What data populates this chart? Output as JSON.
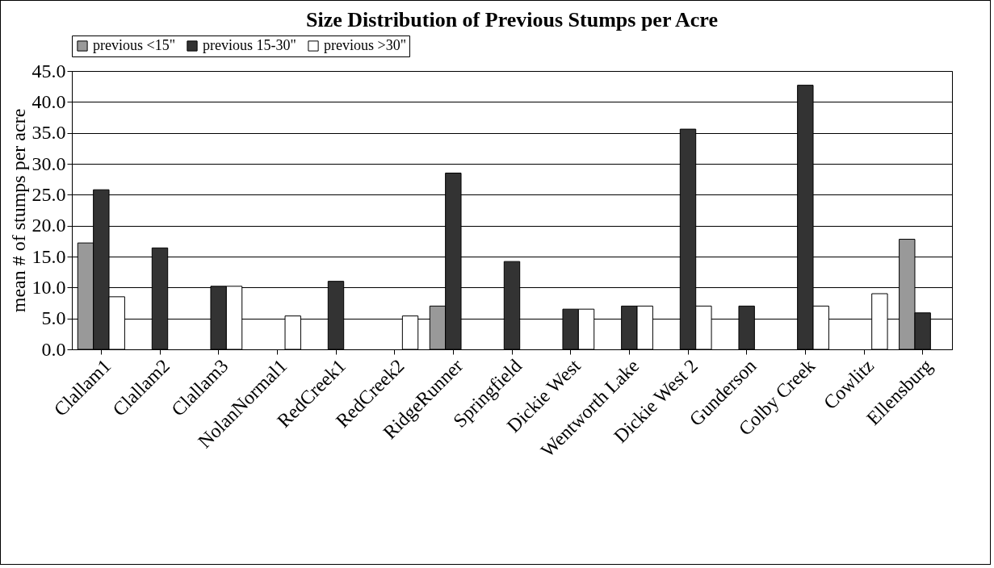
{
  "chart_data": {
    "type": "bar",
    "title": "Size Distribution of Previous Stumps per Acre",
    "ylabel": "mean # of stumps per acre",
    "categories": [
      "Clallam1",
      "Clallam2",
      "Clallam3",
      "NolanNormal1",
      "RedCreek1",
      "RedCreek2",
      "RidgeRunner",
      "Springfield",
      "Dickie West",
      "Wentworth Lake",
      "Dickie West 2",
      "Gunderson",
      "Colby Creek",
      "Cowlitz",
      "Ellensburg"
    ],
    "series": [
      {
        "name": "previous <15\"",
        "color": "#999999",
        "values": [
          17.2,
          null,
          null,
          null,
          null,
          null,
          7.0,
          null,
          null,
          null,
          null,
          null,
          null,
          null,
          17.8
        ]
      },
      {
        "name": "previous 15-30\"",
        "color": "#333333",
        "values": [
          25.8,
          16.4,
          10.2,
          null,
          11.0,
          null,
          28.5,
          14.2,
          6.5,
          7.0,
          35.6,
          7.0,
          42.7,
          null,
          5.9
        ]
      },
      {
        "name": "previous >30\"",
        "color": "#ffffff",
        "values": [
          8.5,
          null,
          10.2,
          5.4,
          null,
          5.4,
          null,
          null,
          6.5,
          7.0,
          7.0,
          null,
          7.0,
          9.0,
          null
        ]
      }
    ],
    "ylim": [
      0,
      45
    ],
    "yticks": [
      {
        "value": 0,
        "label": "0.0"
      },
      {
        "value": 5,
        "label": "5.0"
      },
      {
        "value": 10,
        "label": "10.0"
      },
      {
        "value": 15,
        "label": "15.0"
      },
      {
        "value": 20,
        "label": "20.0"
      },
      {
        "value": 25,
        "label": "25.0"
      },
      {
        "value": 30,
        "label": "30.0"
      },
      {
        "value": 35,
        "label": "35.0"
      },
      {
        "value": 40,
        "label": "40.0"
      },
      {
        "value": 45,
        "label": "45.0"
      }
    ],
    "grid": "y",
    "legend": "top"
  }
}
